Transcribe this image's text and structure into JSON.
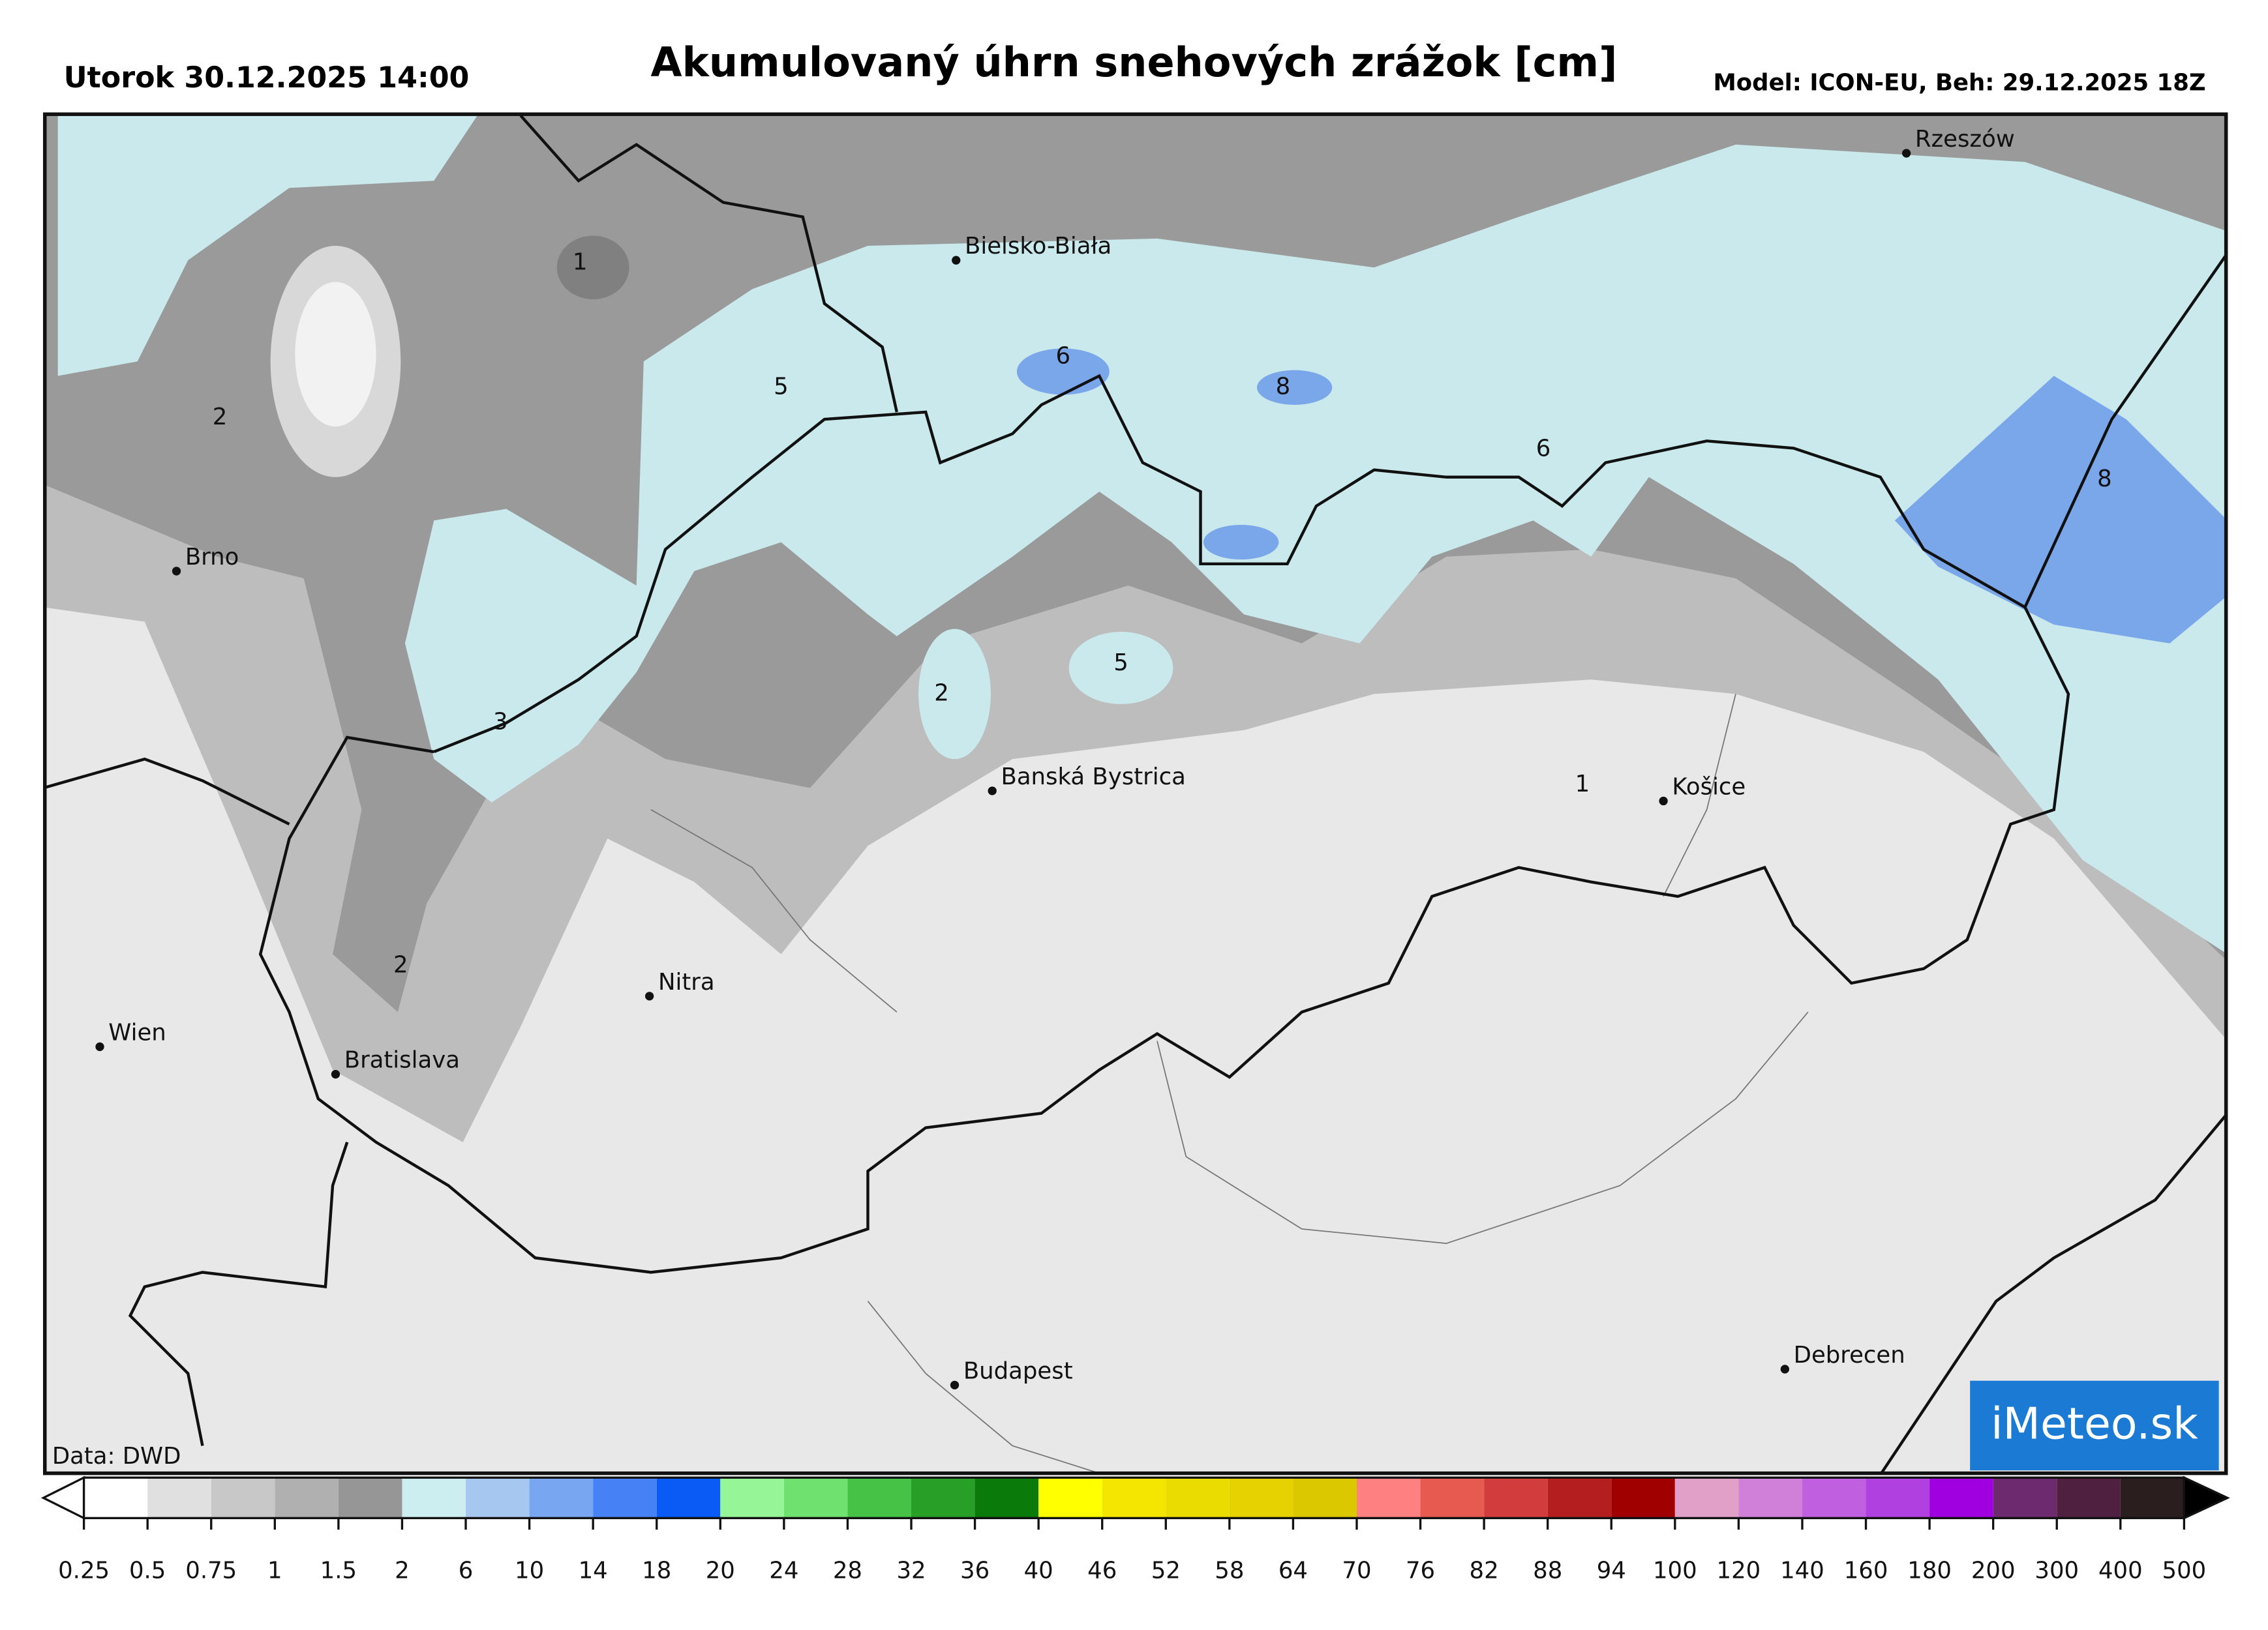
{
  "header": {
    "date": "Utorok 30.12.2025 14:00",
    "title": "Akumulovaný úhrn snehových zrážok [cm]",
    "model": "Model: ICON-EU, Beh: 29.12.2025 18Z"
  },
  "map": {
    "cities": [
      "Rzeszów",
      "Bielsko-Biała",
      "Brno",
      "Banská Bystrica",
      "Košice",
      "Nitra",
      "Wien",
      "Bratislava",
      "Budapest",
      "Debrecen"
    ],
    "contour_labels": [
      1,
      2,
      5,
      6,
      8,
      6,
      8,
      3,
      2,
      5,
      1,
      2
    ],
    "source": "Data: DWD",
    "logo": "iMeteo.sk"
  },
  "colorbar": {
    "ticks": [
      0.25,
      0.5,
      0.75,
      1,
      1.5,
      2,
      6,
      10,
      14,
      18,
      20,
      24,
      28,
      32,
      36,
      40,
      46,
      52,
      58,
      64,
      70,
      76,
      82,
      88,
      94,
      100,
      120,
      140,
      160,
      180,
      200,
      300,
      400,
      500
    ],
    "colors": [
      "#ffffff",
      "#e0e0e0",
      "#c8c8c8",
      "#b0b0b0",
      "#969696",
      "#cdeef0",
      "#a6c8f0",
      "#78a6f0",
      "#4682f5",
      "#0a5af5",
      "#96f596",
      "#6ee16e",
      "#46c346",
      "#28a028",
      "#0a7a0a",
      "#ffff00",
      "#f5e600",
      "#ebdc00",
      "#e6d200",
      "#dcc800",
      "#ff8080",
      "#e65a50",
      "#d23c3c",
      "#b41e1e",
      "#a00000",
      "#e0a0c8",
      "#d080d8",
      "#c060e0",
      "#b040e0",
      "#a000e0",
      "#6e2a6e",
      "#502040",
      "#2a1e1e"
    ],
    "under_color": "#ffffff",
    "over_color": "#000000"
  }
}
